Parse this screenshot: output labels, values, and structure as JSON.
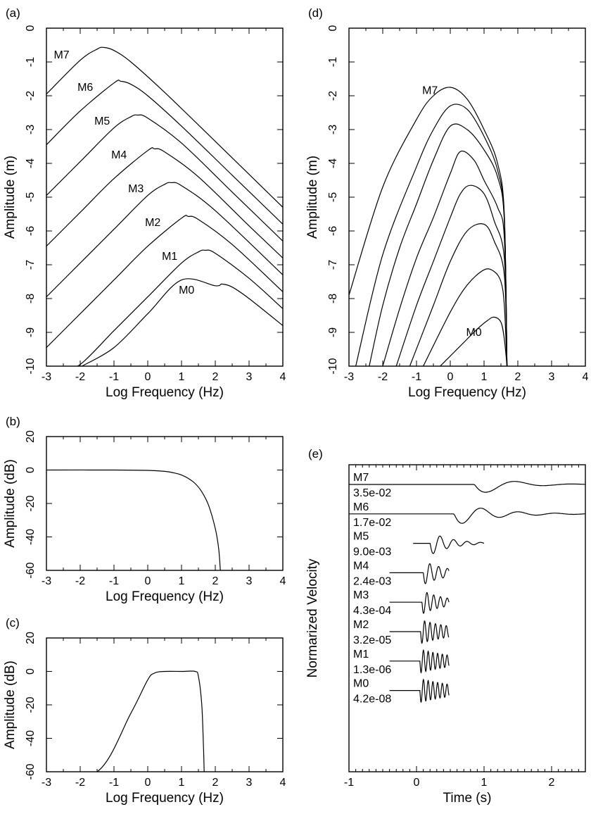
{
  "chart_data": [
    {
      "id": "a",
      "type": "line",
      "panel_label": "(a)",
      "xlabel": "Log Frequency (Hz)",
      "ylabel": "Amplitude (m)",
      "xlim": [
        -3,
        4
      ],
      "ylim": [
        -10,
        0
      ],
      "xticks": [
        "-3",
        "-2",
        "-1",
        "0",
        "1",
        "2",
        "3",
        "4"
      ],
      "yticks": [
        "0",
        "-1",
        "-2",
        "-3",
        "-4",
        "-5",
        "-6",
        "-7",
        "-8",
        "-9",
        "-10"
      ],
      "series": [
        {
          "name": "M7",
          "x": [
            -3.0,
            -2.0,
            -1.5,
            -1.3,
            -1.0,
            -0.5,
            0.5,
            2.0,
            4.0
          ],
          "y": [
            -1.95,
            -0.95,
            -0.62,
            -0.57,
            -0.66,
            -1.0,
            -1.9,
            -3.35,
            -5.3
          ]
        },
        {
          "name": "M6",
          "x": [
            -3.0,
            -2.0,
            -1.0,
            -0.8,
            -0.5,
            0.0,
            1.0,
            2.5,
            4.0
          ],
          "y": [
            -3.45,
            -2.45,
            -1.62,
            -1.57,
            -1.66,
            -2.0,
            -2.9,
            -4.35,
            -5.8
          ]
        },
        {
          "name": "M5",
          "x": [
            -3.0,
            -2.0,
            -1.0,
            -0.5,
            -0.3,
            0.0,
            1.0,
            2.5,
            4.0
          ],
          "y": [
            -4.95,
            -3.95,
            -2.95,
            -2.62,
            -2.57,
            -2.66,
            -3.4,
            -4.85,
            -6.3
          ]
        },
        {
          "name": "M4",
          "x": [
            -3.0,
            -2.0,
            -1.0,
            0.0,
            0.2,
            0.5,
            1.5,
            3.0,
            4.0
          ],
          "y": [
            -6.45,
            -5.45,
            -4.45,
            -3.62,
            -3.57,
            -3.66,
            -4.4,
            -5.85,
            -6.8
          ]
        },
        {
          "name": "M3",
          "x": [
            -3.0,
            -2.0,
            -1.0,
            0.0,
            0.5,
            0.7,
            1.0,
            2.0,
            4.0
          ],
          "y": [
            -7.95,
            -6.95,
            -5.95,
            -4.95,
            -4.62,
            -4.57,
            -4.66,
            -5.4,
            -7.3
          ]
        },
        {
          "name": "M2",
          "x": [
            -3.0,
            -2.0,
            -1.0,
            0.0,
            1.0,
            1.2,
            1.5,
            2.5,
            4.0
          ],
          "y": [
            -9.45,
            -8.45,
            -7.45,
            -6.45,
            -5.62,
            -5.57,
            -5.66,
            -6.4,
            -7.8
          ]
        },
        {
          "name": "M1",
          "x": [
            -2.45,
            -2.0,
            -1.0,
            0.0,
            1.0,
            1.5,
            1.7,
            2.0,
            3.0,
            4.0
          ],
          "y": [
            -10.0,
            -9.95,
            -8.95,
            -7.95,
            -6.95,
            -6.62,
            -6.57,
            -6.66,
            -7.4,
            -8.3
          ]
        },
        {
          "name": "M0",
          "x": [
            -1.95,
            -1.0,
            0.0,
            1.0,
            2.0,
            2.2,
            2.5,
            3.0,
            4.0
          ],
          "y": [
            -10.0,
            -9.45,
            -8.45,
            -7.45,
            -7.62,
            -7.57,
            -7.66,
            -8.0,
            -8.8
          ]
        }
      ],
      "series_labels": [
        {
          "text": "M7",
          "x": -2.55,
          "y": -0.9
        },
        {
          "text": "M6",
          "x": -1.85,
          "y": -1.85
        },
        {
          "text": "M5",
          "x": -1.35,
          "y": -2.85
        },
        {
          "text": "M4",
          "x": -0.85,
          "y": -3.85
        },
        {
          "text": "M3",
          "x": -0.35,
          "y": -4.85
        },
        {
          "text": "M2",
          "x": 0.15,
          "y": -5.85
        },
        {
          "text": "M1",
          "x": 0.65,
          "y": -6.85
        },
        {
          "text": "M0",
          "x": 1.15,
          "y": -7.85
        }
      ]
    },
    {
      "id": "b",
      "type": "line",
      "panel_label": "(b)",
      "xlabel": "Log Frequency (Hz)",
      "ylabel": "Amplitude (dB)",
      "xlim": [
        -3,
        4
      ],
      "ylim": [
        -60,
        20
      ],
      "xticks": [
        "-3",
        "-2",
        "-1",
        "0",
        "1",
        "2",
        "3",
        "4"
      ],
      "yticks": [
        "20",
        "0",
        "-20",
        "-40",
        "-60"
      ],
      "series": [
        {
          "x": [
            -3.0,
            -1.0,
            0.0,
            0.5,
            0.8,
            1.0,
            1.2,
            1.4,
            1.6,
            1.8,
            2.0,
            2.1,
            2.15
          ],
          "y": [
            0,
            0,
            -0.2,
            -0.8,
            -1.8,
            -3.0,
            -5.0,
            -8.0,
            -13.0,
            -21.0,
            -35.0,
            -47.0,
            -60.0
          ]
        }
      ]
    },
    {
      "id": "c",
      "type": "line",
      "panel_label": "(c)",
      "xlabel": "Log Frequency (Hz)",
      "ylabel": "Amplitude (dB)",
      "xlim": [
        -3,
        4
      ],
      "ylim": [
        -60,
        20
      ],
      "xticks": [
        "-3",
        "-2",
        "-1",
        "0",
        "1",
        "2",
        "3",
        "4"
      ],
      "yticks": [
        "20",
        "0",
        "-20",
        "-40",
        "-60"
      ],
      "series": [
        {
          "x": [
            -3.0,
            -1.5,
            -0.5,
            0.0,
            0.2,
            0.5,
            1.0,
            1.4,
            1.5,
            1.6,
            1.65,
            1.67
          ],
          "y": [
            -60,
            -60,
            -25,
            -5,
            -1,
            0,
            0,
            0,
            -3,
            -20,
            -45,
            -60
          ]
        }
      ]
    },
    {
      "id": "d",
      "type": "line",
      "panel_label": "(d)",
      "xlabel": "Log Frequency (Hz)",
      "ylabel": "Amplitude (m)",
      "xlim": [
        -3,
        4
      ],
      "ylim": [
        -10,
        0
      ],
      "xticks": [
        "-3",
        "-2",
        "-1",
        "0",
        "1",
        "2",
        "3",
        "4"
      ],
      "yticks": [
        "0",
        "-1",
        "-2",
        "-3",
        "-4",
        "-5",
        "-6",
        "-7",
        "-8",
        "-9",
        "-10"
      ],
      "series": [
        {
          "name": "M7",
          "x": [
            -3.0,
            -2.0,
            -1.0,
            -0.5,
            0.0,
            0.5,
            1.0,
            1.4,
            1.6,
            1.68
          ],
          "y": [
            -7.9,
            -4.7,
            -2.7,
            -2.0,
            -1.75,
            -2.1,
            -3.0,
            -4.0,
            -5.5,
            -10.0
          ]
        },
        {
          "x": [
            -2.8,
            -2.0,
            -1.0,
            -0.5,
            0.0,
            0.5,
            1.0,
            1.4,
            1.6,
            1.68
          ],
          "y": [
            -10.0,
            -6.7,
            -4.1,
            -3.0,
            -2.3,
            -2.4,
            -3.2,
            -4.2,
            -5.6,
            -10.0
          ]
        },
        {
          "x": [
            -2.4,
            -2.0,
            -1.5,
            -1.0,
            -0.5,
            0.0,
            0.5,
            1.0,
            1.4,
            1.6,
            1.68
          ],
          "y": [
            -10.0,
            -8.2,
            -6.5,
            -5.2,
            -3.9,
            -2.9,
            -3.0,
            -3.6,
            -4.4,
            -5.7,
            -10.0
          ]
        },
        {
          "x": [
            -2.0,
            -1.5,
            -1.0,
            -0.5,
            0.0,
            0.3,
            0.7,
            1.0,
            1.4,
            1.6,
            1.68
          ],
          "y": [
            -10.0,
            -8.3,
            -6.8,
            -5.6,
            -4.3,
            -3.65,
            -3.9,
            -4.5,
            -5.3,
            -6.2,
            -10.0
          ]
        },
        {
          "x": [
            -1.6,
            -1.0,
            -0.5,
            0.0,
            0.3,
            0.6,
            1.0,
            1.3,
            1.6,
            1.68
          ],
          "y": [
            -10.0,
            -8.2,
            -6.9,
            -5.6,
            -4.9,
            -4.65,
            -4.9,
            -5.7,
            -6.8,
            -10.0
          ]
        },
        {
          "x": [
            -1.2,
            -0.5,
            0.0,
            0.5,
            1.0,
            1.3,
            1.6,
            1.68
          ],
          "y": [
            -10.0,
            -8.2,
            -6.9,
            -6.0,
            -5.8,
            -6.3,
            -7.3,
            -10.0
          ]
        },
        {
          "x": [
            -0.8,
            0.0,
            0.5,
            1.0,
            1.3,
            1.5,
            1.6,
            1.68
          ],
          "y": [
            -10.0,
            -8.4,
            -7.6,
            -7.15,
            -7.2,
            -7.5,
            -8.2,
            -10.0
          ]
        },
        {
          "name": "M0",
          "x": [
            -0.3,
            0.3,
            0.8,
            1.1,
            1.3,
            1.5,
            1.6,
            1.68
          ],
          "y": [
            -10.0,
            -9.4,
            -8.9,
            -8.65,
            -8.55,
            -8.7,
            -9.2,
            -10.0
          ]
        }
      ],
      "series_labels": [
        {
          "text": "M7",
          "x": -0.6,
          "y": -1.95
        },
        {
          "text": "M0",
          "x": 0.7,
          "y": -9.1
        }
      ]
    },
    {
      "id": "e",
      "type": "line",
      "panel_label": "(e)",
      "xlabel": "Time (s)",
      "ylabel": "Normarized Velocity",
      "xlim": [
        -1,
        2.5
      ],
      "xticks": [
        "-1",
        "0",
        "1",
        "2"
      ],
      "traces": [
        {
          "name": "M7",
          "peak": "3.5e-02",
          "t_start": -1.0,
          "t_end": 2.5,
          "t_onset": 0.85,
          "period": 0.85,
          "decay": 0.45
        },
        {
          "name": "M6",
          "peak": "1.7e-02",
          "t_start": -1.0,
          "t_end": 2.5,
          "t_onset": 0.55,
          "period": 0.55,
          "decay": 0.55
        },
        {
          "name": "M5",
          "peak": "9.0e-03",
          "t_start": -0.05,
          "t_end": 1.0,
          "t_onset": 0.2,
          "period": 0.2,
          "decay": 0.3
        },
        {
          "name": "M4",
          "peak": "2.4e-03",
          "t_start": -0.4,
          "t_end": 0.48,
          "t_onset": 0.1,
          "period": 0.13,
          "decay": 0.35
        },
        {
          "name": "M3",
          "peak": "4.3e-04",
          "t_start": -0.4,
          "t_end": 0.48,
          "t_onset": 0.08,
          "period": 0.1,
          "decay": 0.35
        },
        {
          "name": "M2",
          "peak": "3.2e-05",
          "t_start": -0.4,
          "t_end": 0.48,
          "t_onset": 0.06,
          "period": 0.08,
          "decay": 0.55
        },
        {
          "name": "M1",
          "peak": "1.3e-06",
          "t_start": -0.4,
          "t_end": 0.48,
          "t_onset": 0.05,
          "period": 0.07,
          "decay": 0.6
        },
        {
          "name": "M0",
          "peak": "4.2e-08",
          "t_start": -0.4,
          "t_end": 0.48,
          "t_onset": 0.05,
          "period": 0.07,
          "decay": 0.65
        }
      ]
    }
  ]
}
